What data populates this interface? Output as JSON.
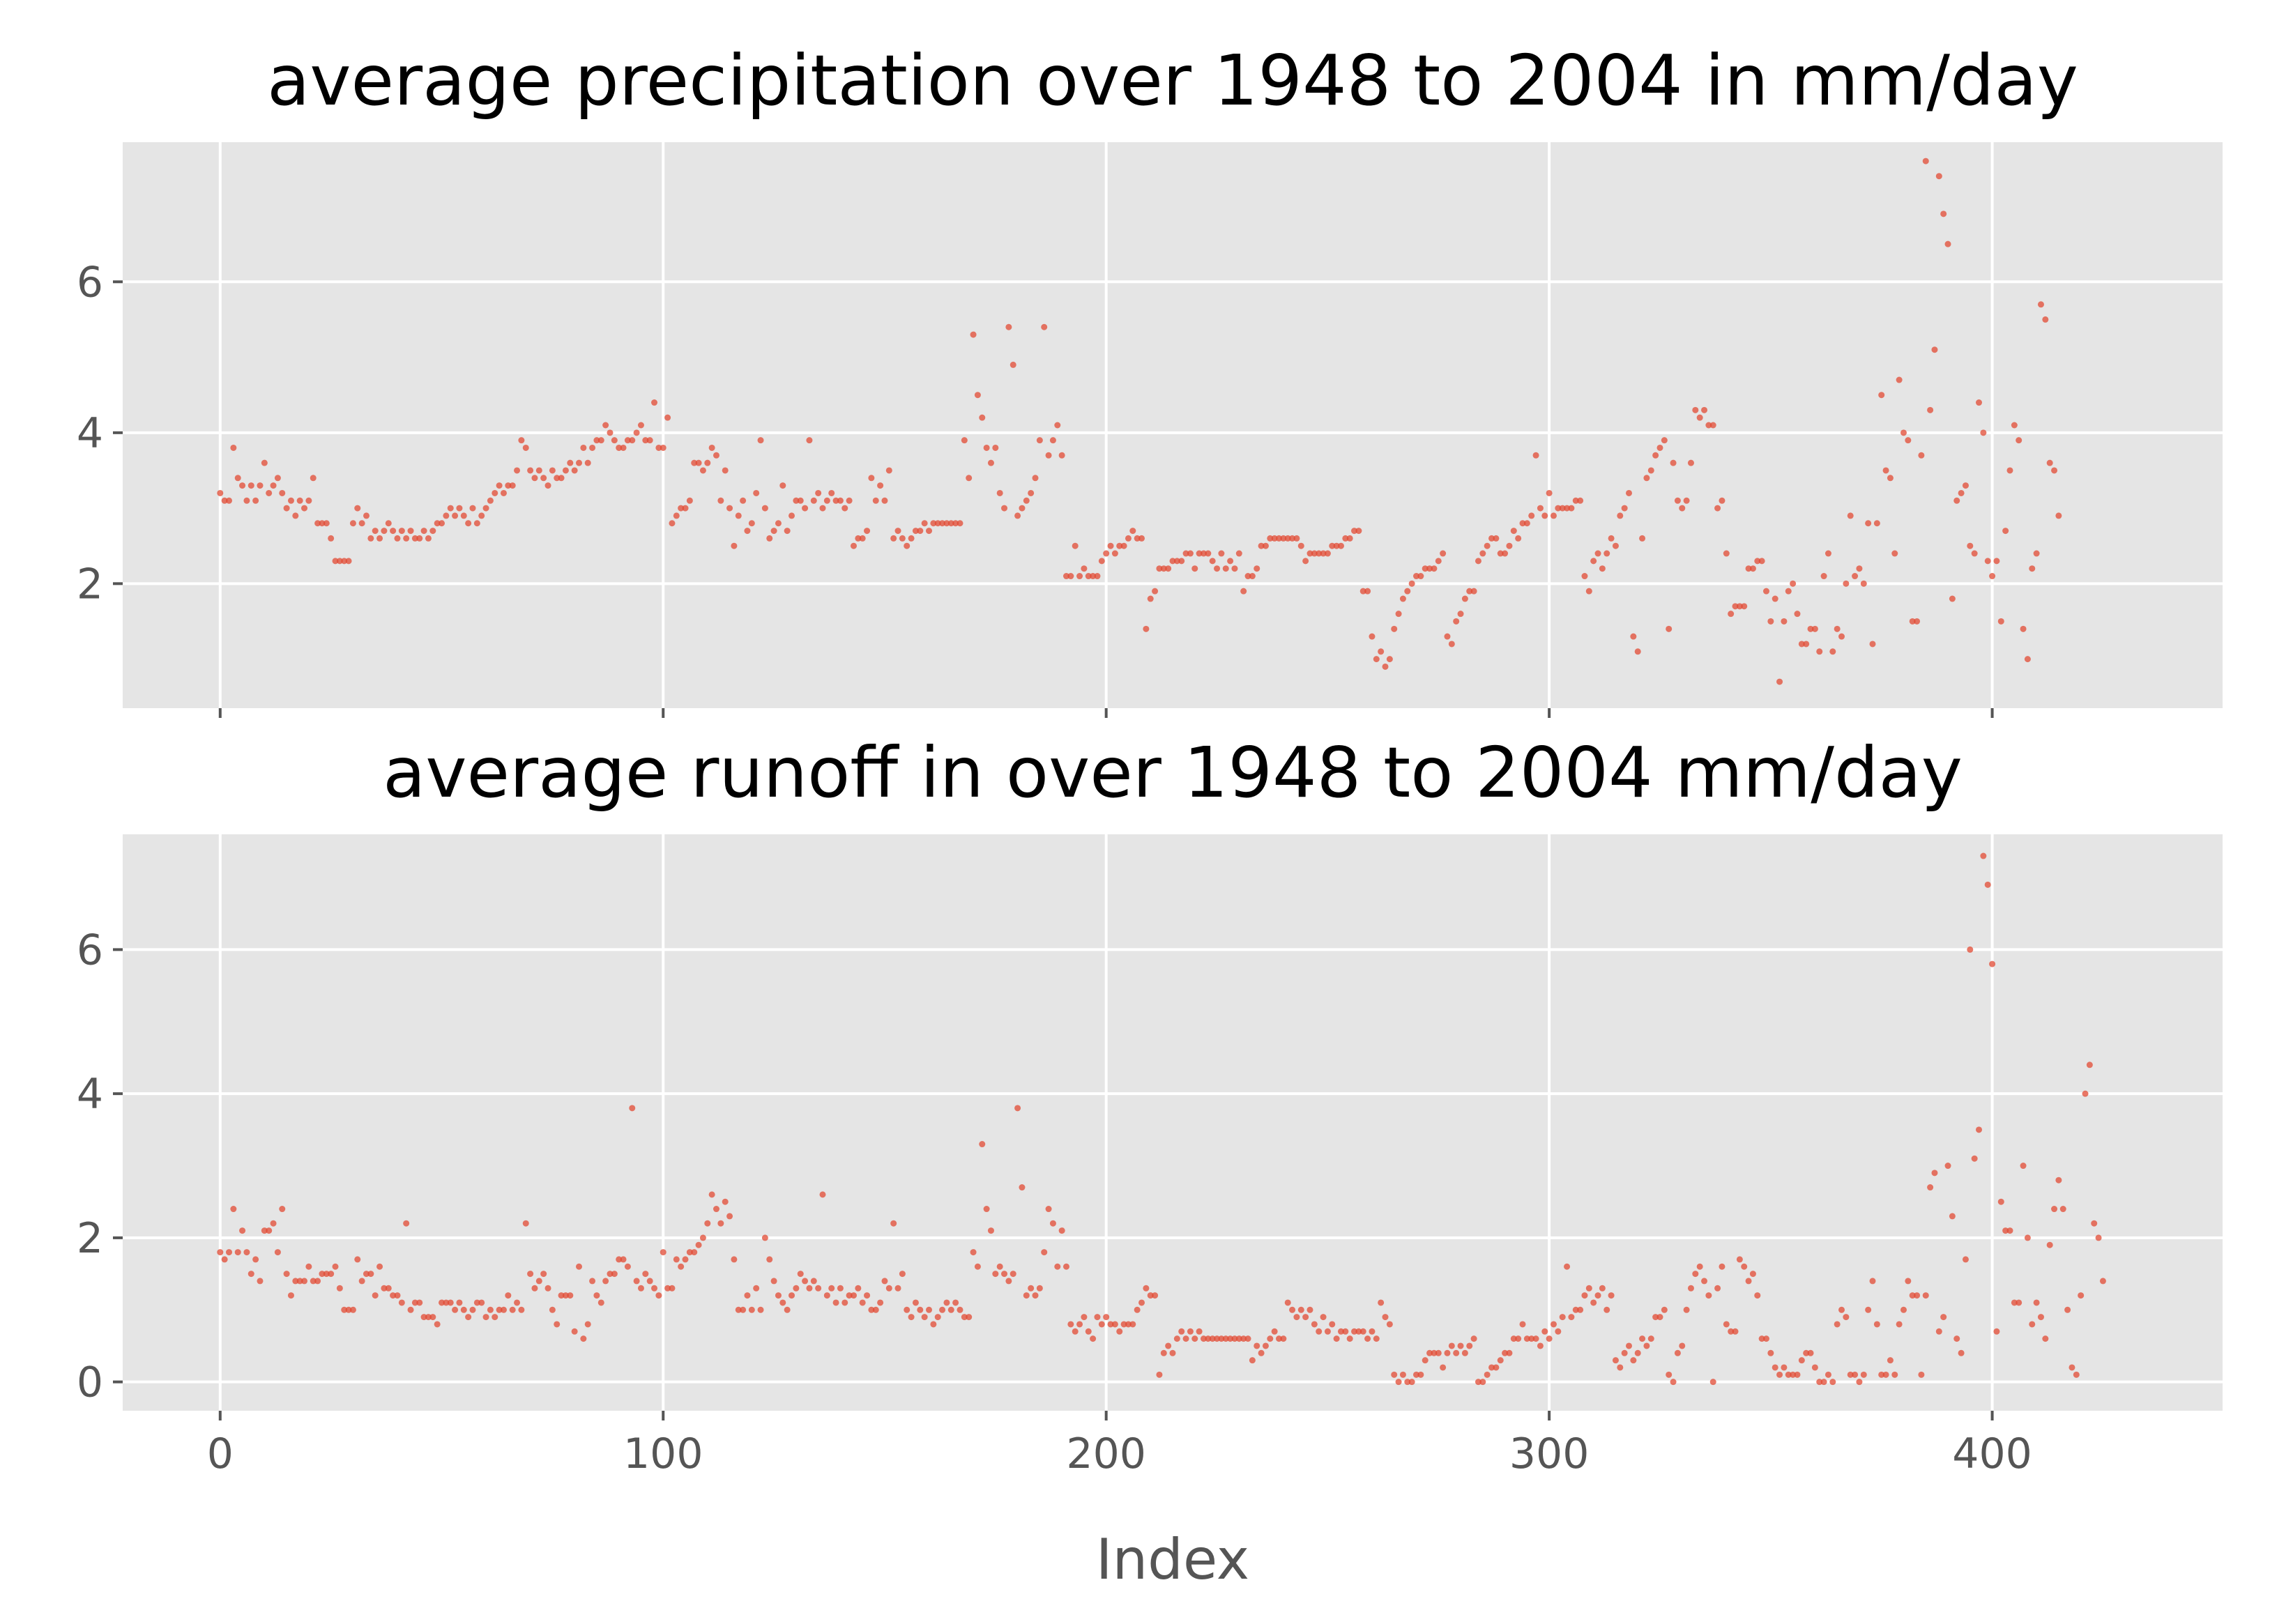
{
  "chart_data": [
    {
      "type": "scatter",
      "title": "average precipitation over 1948 to 2004 in mm/day",
      "xlabel": "",
      "ylabel": "",
      "xlim": [
        -22,
        452
      ],
      "ylim": [
        0.35,
        7.85
      ],
      "xticks": [
        0,
        100,
        200,
        300,
        400
      ],
      "xtick_labels": [],
      "yticks": [
        2,
        4,
        6
      ],
      "ytick_labels": [
        "2",
        "4",
        "6"
      ],
      "grid": true,
      "sharex": true,
      "color": "#e24a33",
      "y": [
        3.2,
        3.1,
        3.1,
        3.8,
        3.4,
        3.3,
        3.1,
        3.3,
        3.1,
        3.3,
        3.6,
        3.2,
        3.3,
        3.4,
        3.2,
        3.0,
        3.1,
        2.9,
        3.1,
        3.0,
        3.1,
        3.4,
        2.8,
        2.8,
        2.8,
        2.6,
        2.3,
        2.3,
        2.3,
        2.3,
        2.8,
        3.0,
        2.8,
        2.9,
        2.6,
        2.7,
        2.6,
        2.7,
        2.8,
        2.7,
        2.6,
        2.7,
        2.6,
        2.7,
        2.6,
        2.6,
        2.7,
        2.6,
        2.7,
        2.8,
        2.8,
        2.9,
        3.0,
        2.9,
        3.0,
        2.9,
        2.8,
        3.0,
        2.8,
        2.9,
        3.0,
        3.1,
        3.2,
        3.3,
        3.2,
        3.3,
        3.3,
        3.5,
        3.9,
        3.8,
        3.5,
        3.4,
        3.5,
        3.4,
        3.3,
        3.5,
        3.4,
        3.4,
        3.5,
        3.6,
        3.5,
        3.6,
        3.8,
        3.6,
        3.8,
        3.9,
        3.9,
        4.1,
        4.0,
        3.9,
        3.8,
        3.8,
        3.9,
        3.9,
        4.0,
        4.1,
        3.9,
        3.9,
        4.4,
        3.8,
        3.8,
        4.2,
        2.8,
        2.9,
        3.0,
        3.0,
        3.1,
        3.6,
        3.6,
        3.5,
        3.6,
        3.8,
        3.7,
        3.1,
        3.5,
        3.0,
        2.5,
        2.9,
        3.1,
        2.7,
        2.8,
        3.2,
        3.9,
        3.0,
        2.6,
        2.7,
        2.8,
        3.3,
        2.7,
        2.9,
        3.1,
        3.1,
        3.0,
        3.9,
        3.1,
        3.2,
        3.0,
        3.1,
        3.2,
        3.1,
        3.1,
        3.0,
        3.1,
        2.5,
        2.6,
        2.6,
        2.7,
        3.4,
        3.1,
        3.3,
        3.1,
        3.5,
        2.6,
        2.7,
        2.6,
        2.5,
        2.6,
        2.7,
        2.7,
        2.8,
        2.7,
        2.8,
        2.8,
        2.8,
        2.8,
        2.8,
        2.8,
        2.8,
        3.9,
        3.4,
        5.3,
        4.5,
        4.2,
        3.8,
        3.6,
        3.8,
        3.2,
        3.0,
        5.4,
        4.9,
        2.9,
        3.0,
        3.1,
        3.2,
        3.4,
        3.9,
        5.4,
        3.7,
        3.9,
        4.1,
        3.7,
        2.1,
        2.1,
        2.5,
        2.1,
        2.2,
        2.1,
        2.1,
        2.1,
        2.3,
        2.4,
        2.5,
        2.4,
        2.5,
        2.5,
        2.6,
        2.7,
        2.6,
        2.6,
        1.4,
        1.8,
        1.9,
        2.2,
        2.2,
        2.2,
        2.3,
        2.3,
        2.3,
        2.4,
        2.4,
        2.2,
        2.4,
        2.4,
        2.4,
        2.3,
        2.2,
        2.4,
        2.2,
        2.3,
        2.2,
        2.4,
        1.9,
        2.1,
        2.1,
        2.2,
        2.5,
        2.5,
        2.6,
        2.6,
        2.6,
        2.6,
        2.6,
        2.6,
        2.6,
        2.5,
        2.3,
        2.4,
        2.4,
        2.4,
        2.4,
        2.4,
        2.5,
        2.5,
        2.5,
        2.6,
        2.6,
        2.7,
        2.7,
        1.9,
        1.9,
        1.3,
        1.0,
        1.1,
        0.9,
        1.0,
        1.4,
        1.6,
        1.8,
        1.9,
        2.0,
        2.1,
        2.1,
        2.2,
        2.2,
        2.2,
        2.3,
        2.4,
        1.3,
        1.2,
        1.5,
        1.6,
        1.8,
        1.9,
        1.9,
        2.3,
        2.4,
        2.5,
        2.6,
        2.6,
        2.4,
        2.4,
        2.5,
        2.7,
        2.6,
        2.8,
        2.8,
        2.9,
        3.7,
        3.0,
        2.9,
        3.2,
        2.9,
        3.0,
        3.0,
        3.0,
        3.0,
        3.1,
        3.1,
        2.1,
        1.9,
        2.3,
        2.4,
        2.2,
        2.4,
        2.6,
        2.5,
        2.9,
        3.0,
        3.2,
        1.3,
        1.1,
        2.6,
        3.4,
        3.5,
        3.7,
        3.8,
        3.9,
        1.4,
        3.6,
        3.1,
        3.0,
        3.1,
        3.6,
        4.3,
        4.2,
        4.3,
        4.1,
        4.1,
        3.0,
        3.1,
        2.4,
        1.6,
        1.7,
        1.7,
        1.7,
        2.2,
        2.2,
        2.3,
        2.3,
        1.9,
        1.5,
        1.8,
        0.7,
        1.5,
        1.9,
        2.0,
        1.6,
        1.2,
        1.2,
        1.4,
        1.4,
        1.1,
        2.1,
        2.4,
        1.1,
        1.4,
        1.3,
        2.0,
        2.9,
        2.1,
        2.2,
        2.0,
        2.8,
        1.2,
        2.8,
        4.5,
        3.5,
        3.4,
        2.4,
        4.7,
        4.0,
        3.9,
        1.5,
        1.5,
        3.7,
        7.6,
        4.3,
        5.1,
        7.4,
        6.9,
        6.5,
        1.8,
        3.1,
        3.2,
        3.3,
        2.5,
        2.4,
        4.4,
        4.0,
        2.3,
        2.1,
        2.3,
        1.5,
        2.7,
        3.5,
        4.1,
        3.9,
        1.4,
        1.0,
        2.2,
        2.4,
        5.7,
        5.5,
        3.6,
        3.5,
        2.9
      ]
    },
    {
      "type": "scatter",
      "title": "average runoff in over 1948 to 2004 mm/day",
      "xlabel": "Index",
      "ylabel": "",
      "xlim": [
        -22,
        452
      ],
      "ylim": [
        -0.4,
        7.6
      ],
      "xticks": [
        0,
        100,
        200,
        300,
        400
      ],
      "xtick_labels": [
        "0",
        "100",
        "200",
        "300",
        "400"
      ],
      "yticks": [
        0,
        2,
        4,
        6
      ],
      "ytick_labels": [
        "0",
        "2",
        "4",
        "6"
      ],
      "grid": true,
      "color": "#e24a33",
      "y": [
        1.8,
        1.7,
        1.8,
        2.4,
        1.8,
        2.1,
        1.8,
        1.5,
        1.7,
        1.4,
        2.1,
        2.1,
        2.2,
        1.8,
        2.4,
        1.5,
        1.2,
        1.4,
        1.4,
        1.4,
        1.6,
        1.4,
        1.4,
        1.5,
        1.5,
        1.5,
        1.6,
        1.3,
        1.0,
        1.0,
        1.0,
        1.7,
        1.4,
        1.5,
        1.5,
        1.2,
        1.6,
        1.3,
        1.3,
        1.2,
        1.2,
        1.1,
        2.2,
        1.0,
        1.1,
        1.1,
        0.9,
        0.9,
        0.9,
        0.8,
        1.1,
        1.1,
        1.1,
        1.0,
        1.1,
        1.0,
        0.9,
        1.0,
        1.1,
        1.1,
        0.9,
        1.0,
        0.9,
        1.0,
        1.0,
        1.2,
        1.0,
        1.1,
        1.0,
        2.2,
        1.5,
        1.3,
        1.4,
        1.5,
        1.3,
        1.0,
        0.8,
        1.2,
        1.2,
        1.2,
        0.7,
        1.6,
        0.6,
        0.8,
        1.4,
        1.2,
        1.1,
        1.4,
        1.5,
        1.5,
        1.7,
        1.7,
        1.6,
        3.8,
        1.4,
        1.3,
        1.5,
        1.4,
        1.3,
        1.2,
        1.8,
        1.3,
        1.3,
        1.7,
        1.6,
        1.7,
        1.8,
        1.8,
        1.9,
        2.0,
        2.2,
        2.6,
        2.4,
        2.2,
        2.5,
        2.3,
        1.7,
        1.0,
        1.0,
        1.2,
        1.0,
        1.3,
        1.0,
        2.0,
        1.7,
        1.4,
        1.2,
        1.1,
        1.0,
        1.2,
        1.3,
        1.5,
        1.4,
        1.3,
        1.4,
        1.3,
        2.6,
        1.2,
        1.3,
        1.1,
        1.3,
        1.1,
        1.2,
        1.2,
        1.3,
        1.1,
        1.2,
        1.0,
        1.0,
        1.1,
        1.4,
        1.3,
        2.2,
        1.3,
        1.5,
        1.0,
        0.9,
        1.1,
        1.0,
        0.9,
        1.0,
        0.8,
        0.9,
        1.0,
        1.1,
        1.0,
        1.1,
        1.0,
        0.9,
        0.9,
        1.8,
        1.6,
        3.3,
        2.4,
        2.1,
        1.5,
        1.6,
        1.5,
        1.4,
        1.5,
        3.8,
        2.7,
        1.2,
        1.3,
        1.2,
        1.3,
        1.8,
        2.4,
        2.2,
        1.6,
        2.1,
        1.6,
        0.8,
        0.7,
        0.8,
        0.9,
        0.7,
        0.6,
        0.9,
        0.8,
        0.9,
        0.8,
        0.8,
        0.7,
        0.8,
        0.8,
        0.8,
        1.0,
        1.1,
        1.3,
        1.2,
        1.2,
        0.1,
        0.4,
        0.5,
        0.4,
        0.6,
        0.7,
        0.6,
        0.7,
        0.6,
        0.7,
        0.6,
        0.6,
        0.6,
        0.6,
        0.6,
        0.6,
        0.6,
        0.6,
        0.6,
        0.6,
        0.6,
        0.3,
        0.5,
        0.4,
        0.5,
        0.6,
        0.7,
        0.6,
        0.6,
        1.1,
        1.0,
        0.9,
        1.0,
        0.9,
        1.0,
        0.8,
        0.7,
        0.9,
        0.7,
        0.8,
        0.6,
        0.7,
        0.7,
        0.6,
        0.7,
        0.7,
        0.7,
        0.6,
        0.7,
        0.6,
        1.1,
        0.9,
        0.8,
        0.1,
        0.0,
        0.1,
        0.0,
        0.0,
        0.1,
        0.1,
        0.3,
        0.4,
        0.4,
        0.4,
        0.2,
        0.4,
        0.5,
        0.4,
        0.5,
        0.4,
        0.5,
        0.6,
        0.0,
        0.0,
        0.1,
        0.2,
        0.2,
        0.3,
        0.4,
        0.4,
        0.6,
        0.6,
        0.8,
        0.6,
        0.6,
        0.6,
        0.5,
        0.7,
        0.6,
        0.8,
        0.7,
        0.9,
        1.6,
        0.9,
        1.0,
        1.0,
        1.2,
        1.3,
        1.1,
        1.2,
        1.3,
        1.0,
        1.2,
        0.3,
        0.2,
        0.4,
        0.5,
        0.3,
        0.4,
        0.6,
        0.5,
        0.6,
        0.9,
        0.9,
        1.0,
        0.1,
        0.0,
        0.4,
        0.5,
        1.0,
        1.3,
        1.5,
        1.6,
        1.4,
        1.2,
        0.0,
        1.3,
        1.6,
        0.8,
        0.7,
        0.7,
        1.7,
        1.6,
        1.4,
        1.5,
        1.2,
        0.6,
        0.6,
        0.4,
        0.2,
        0.1,
        0.2,
        0.1,
        0.1,
        0.1,
        0.3,
        0.4,
        0.4,
        0.2,
        0.0,
        0.0,
        0.1,
        0.0,
        0.8,
        1.0,
        0.9,
        0.1,
        0.1,
        0.0,
        0.1,
        1.0,
        1.4,
        0.8,
        0.1,
        0.1,
        0.3,
        0.1,
        0.8,
        1.0,
        1.4,
        1.2,
        1.2,
        0.1,
        1.2,
        2.7,
        2.9,
        0.7,
        0.9,
        3.0,
        2.3,
        0.6,
        0.4,
        1.7,
        6.0,
        3.1,
        3.5,
        7.3,
        6.9,
        5.8,
        0.7,
        2.5,
        2.1,
        2.1,
        1.1,
        1.1,
        3.0,
        2.0,
        0.8,
        1.1,
        0.9,
        0.6,
        1.9,
        2.4,
        2.8,
        2.4,
        1.0,
        0.2,
        0.1,
        1.2,
        4.0,
        4.4,
        2.2,
        2.0,
        1.4
      ]
    }
  ]
}
